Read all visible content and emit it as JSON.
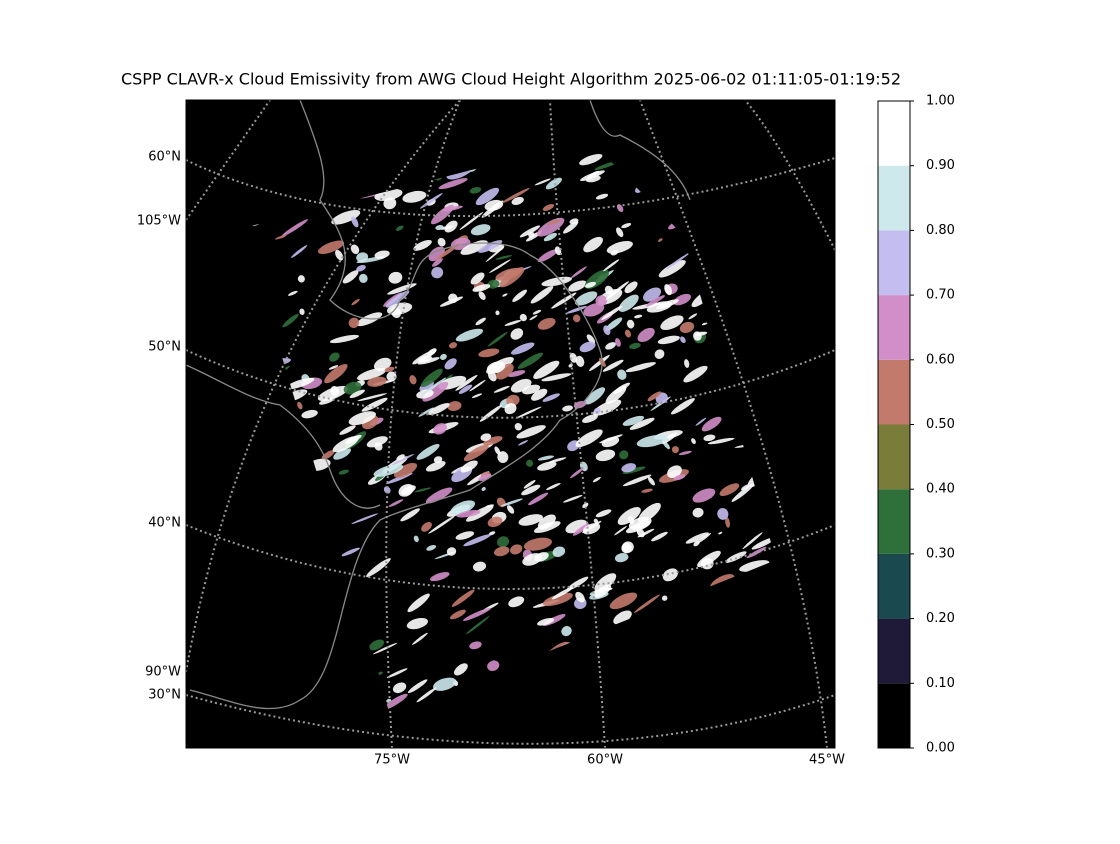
{
  "title": "CSPP CLAVR-x Cloud Emissivity from AWG Cloud Height Algorithm 2025-06-02 01:11:05-01:19:52",
  "map": {
    "lat_labels": [
      "60°N",
      "50°N",
      "40°N",
      "30°N"
    ],
    "lon_labels_left": [
      "105°W",
      "90°W"
    ],
    "lon_labels_bottom": [
      "75°W",
      "60°W",
      "45°W"
    ]
  },
  "colorbar": {
    "range": [
      0,
      1
    ],
    "ticks": [
      {
        "value": 0,
        "label": "0.00"
      },
      {
        "value": 0.1,
        "label": "0.10"
      },
      {
        "value": 0.2,
        "label": "0.20"
      },
      {
        "value": 0.3,
        "label": "0.30"
      },
      {
        "value": 0.4,
        "label": "0.40"
      },
      {
        "value": 0.5,
        "label": "0.50"
      },
      {
        "value": 0.6,
        "label": "0.60"
      },
      {
        "value": 0.7,
        "label": "0.70"
      },
      {
        "value": 0.8,
        "label": "0.80"
      },
      {
        "value": 0.9,
        "label": "0.90"
      },
      {
        "value": 1,
        "label": "1.00"
      }
    ],
    "colors": [
      "#000000",
      "#1e1a38",
      "#1a4a4f",
      "#2f6f3a",
      "#7a7d3a",
      "#c27a6c",
      "#d28ec8",
      "#c3bdf0",
      "#cde9ec",
      "#ffffff"
    ]
  }
}
